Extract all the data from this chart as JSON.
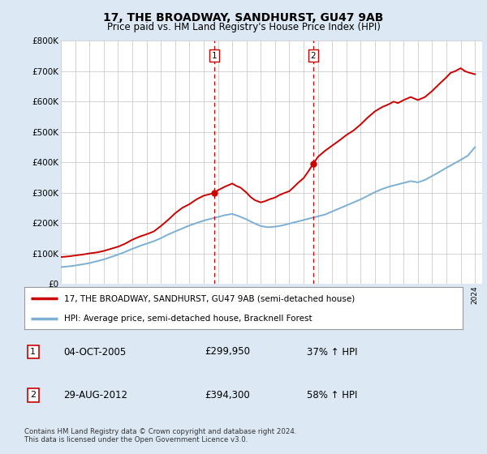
{
  "title": "17, THE BROADWAY, SANDHURST, GU47 9AB",
  "subtitle": "Price paid vs. HM Land Registry's House Price Index (HPI)",
  "legend_line1": "17, THE BROADWAY, SANDHURST, GU47 9AB (semi-detached house)",
  "legend_line2": "HPI: Average price, semi-detached house, Bracknell Forest",
  "footer": "Contains HM Land Registry data © Crown copyright and database right 2024.\nThis data is licensed under the Open Government Licence v3.0.",
  "table": [
    {
      "num": "1",
      "date": "04-OCT-2005",
      "price": "£299,950",
      "change": "37% ↑ HPI"
    },
    {
      "num": "2",
      "date": "29-AUG-2012",
      "price": "£394,300",
      "change": "58% ↑ HPI"
    }
  ],
  "sale1_x": 2005.75,
  "sale1_y": 299950,
  "sale2_x": 2012.66,
  "sale2_y": 394300,
  "red_line_color": "#cc0000",
  "blue_line_color": "#7bafd4",
  "background_color": "#dce9f5",
  "plot_bg_color": "#ffffff",
  "vline_color": "#cc0000",
  "marker_color": "#cc0000",
  "ylim": [
    0,
    800000
  ],
  "xlim": [
    1995,
    2024.5
  ],
  "red_x": [
    1995.0,
    1995.5,
    1996.0,
    1996.5,
    1997.0,
    1997.5,
    1998.0,
    1998.5,
    1999.0,
    1999.5,
    2000.0,
    2000.5,
    2001.0,
    2001.5,
    2002.0,
    2002.5,
    2003.0,
    2003.5,
    2004.0,
    2004.5,
    2005.0,
    2005.5,
    2005.75,
    2006.0,
    2006.5,
    2007.0,
    2007.3,
    2007.6,
    2008.0,
    2008.3,
    2008.6,
    2009.0,
    2009.3,
    2009.6,
    2010.0,
    2010.3,
    2010.6,
    2011.0,
    2011.3,
    2011.6,
    2012.0,
    2012.3,
    2012.66,
    2013.0,
    2013.5,
    2014.0,
    2014.5,
    2015.0,
    2015.5,
    2016.0,
    2016.5,
    2017.0,
    2017.5,
    2018.0,
    2018.3,
    2018.6,
    2019.0,
    2019.5,
    2020.0,
    2020.5,
    2021.0,
    2021.5,
    2022.0,
    2022.3,
    2022.6,
    2023.0,
    2023.3,
    2023.6,
    2024.0
  ],
  "red_y": [
    88000,
    90000,
    93000,
    96000,
    100000,
    103000,
    108000,
    115000,
    122000,
    132000,
    145000,
    155000,
    163000,
    172000,
    190000,
    210000,
    232000,
    250000,
    262000,
    278000,
    290000,
    296000,
    299950,
    308000,
    320000,
    330000,
    322000,
    316000,
    300000,
    285000,
    275000,
    268000,
    272000,
    278000,
    284000,
    292000,
    298000,
    305000,
    318000,
    332000,
    348000,
    368000,
    394300,
    418000,
    438000,
    455000,
    472000,
    490000,
    505000,
    525000,
    548000,
    568000,
    582000,
    592000,
    600000,
    595000,
    605000,
    615000,
    605000,
    615000,
    635000,
    658000,
    680000,
    695000,
    700000,
    710000,
    700000,
    695000,
    690000
  ],
  "blue_x": [
    1995.0,
    1995.5,
    1996.0,
    1996.5,
    1997.0,
    1997.5,
    1998.0,
    1998.5,
    1999.0,
    1999.5,
    2000.0,
    2000.5,
    2001.0,
    2001.5,
    2002.0,
    2002.5,
    2003.0,
    2003.5,
    2004.0,
    2004.5,
    2005.0,
    2005.5,
    2006.0,
    2006.5,
    2007.0,
    2007.5,
    2008.0,
    2008.5,
    2009.0,
    2009.5,
    2010.0,
    2010.5,
    2011.0,
    2011.5,
    2012.0,
    2012.5,
    2013.0,
    2013.5,
    2014.0,
    2014.5,
    2015.0,
    2015.5,
    2016.0,
    2016.5,
    2017.0,
    2017.5,
    2018.0,
    2018.5,
    2019.0,
    2019.5,
    2020.0,
    2020.5,
    2021.0,
    2021.5,
    2022.0,
    2022.5,
    2023.0,
    2023.5,
    2024.0
  ],
  "blue_y": [
    55000,
    57000,
    60000,
    64000,
    68000,
    74000,
    80000,
    88000,
    96000,
    105000,
    115000,
    124000,
    132000,
    140000,
    150000,
    162000,
    172000,
    182000,
    192000,
    200000,
    208000,
    214000,
    220000,
    226000,
    230000,
    222000,
    212000,
    200000,
    190000,
    186000,
    188000,
    192000,
    198000,
    204000,
    210000,
    216000,
    222000,
    228000,
    238000,
    248000,
    258000,
    268000,
    278000,
    290000,
    302000,
    312000,
    320000,
    326000,
    332000,
    338000,
    334000,
    342000,
    355000,
    368000,
    382000,
    395000,
    408000,
    422000,
    450000
  ]
}
